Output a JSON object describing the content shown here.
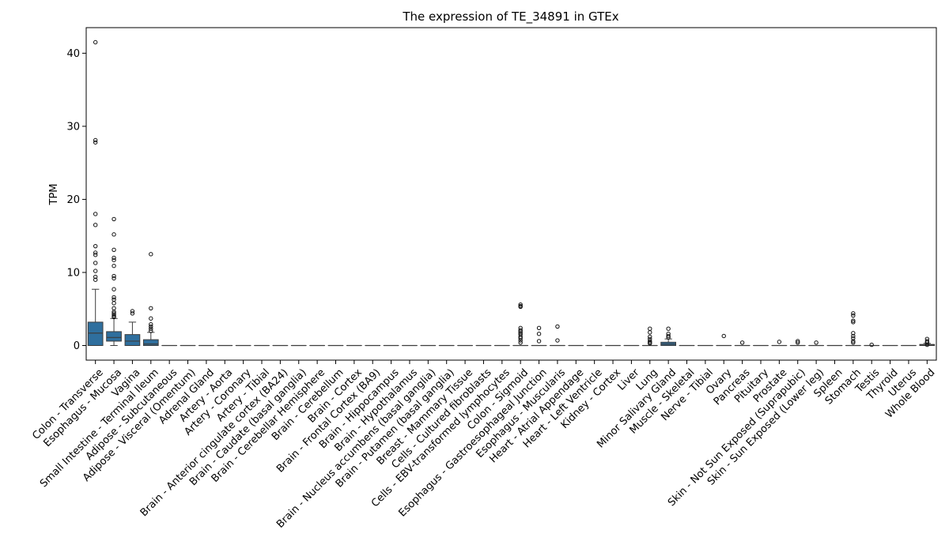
{
  "chart_data": {
    "type": "box",
    "title": "The expression of TE_34891 in GTEx",
    "xlabel": "",
    "ylabel": "TPM",
    "ylim": [
      -2,
      43.5
    ],
    "yticks": [
      0,
      10,
      20,
      30,
      40
    ],
    "grid": false,
    "legend": "none",
    "box_color": "#2f6f9e",
    "categories": [
      "Colon - Transverse",
      "Esophagus - Mucosa",
      "Vagina",
      "Small Intestine - Terminal Ileum",
      "Adipose - Subcutaneous",
      "Adipose - Visceral (Omentum)",
      "Adrenal Gland",
      "Artery - Aorta",
      "Artery - Coronary",
      "Artery - Tibial",
      "Brain - Anterior cingulate cortex (BA24)",
      "Brain - Caudate (basal ganglia)",
      "Brain - Cerebellar Hemisphere",
      "Brain - Cerebellum",
      "Brain - Cortex",
      "Brain - Frontal Cortex (BA9)",
      "Brain - Hippocampus",
      "Brain - Hypothalamus",
      "Brain - Nucleus accumbens (basal ganglia)",
      "Brain - Putamen (basal ganglia)",
      "Breast - Mammary Tissue",
      "Cells - Cultured fibroblasts",
      "Cells - EBV-transformed lymphocytes",
      "Colon - Sigmoid",
      "Esophagus - Gastroesophageal Junction",
      "Esophagus - Muscularis",
      "Heart - Atrial Appendage",
      "Heart - Left Ventricle",
      "Kidney - Cortex",
      "Liver",
      "Lung",
      "Minor Salivary Gland",
      "Muscle - Skeletal",
      "Nerve - Tibial",
      "Ovary",
      "Pancreas",
      "Pituitary",
      "Prostate",
      "Skin - Not Sun Exposed (Suprapubic)",
      "Skin - Sun Exposed (Lower leg)",
      "Spleen",
      "Stomach",
      "Testis",
      "Thyroid",
      "Uterus",
      "Whole Blood"
    ],
    "boxes": [
      {
        "q1": 0.0,
        "median": 1.7,
        "q3": 3.2,
        "whisker_low": 0.0,
        "whisker_high": 7.7,
        "outliers": [
          41.5,
          28.1,
          27.8,
          18.0,
          16.5,
          13.6,
          12.7,
          12.4,
          11.3,
          10.2,
          9.4,
          9.0
        ]
      },
      {
        "q1": 0.6,
        "median": 1.1,
        "q3": 1.9,
        "whisker_low": 0.0,
        "whisker_high": 3.7,
        "outliers": [
          17.3,
          15.2,
          13.1,
          12.0,
          11.7,
          10.9,
          9.5,
          9.2,
          7.7,
          6.6,
          6.3,
          5.8,
          5.1,
          4.6,
          4.4,
          4.2,
          4.0,
          3.9
        ]
      },
      {
        "q1": 0.0,
        "median": 0.6,
        "q3": 1.5,
        "whisker_low": 0.0,
        "whisker_high": 3.2,
        "outliers": [
          4.7,
          4.4
        ]
      },
      {
        "q1": 0.0,
        "median": 0.2,
        "q3": 0.8,
        "whisker_low": 0.0,
        "whisker_high": 1.8,
        "outliers": [
          12.5,
          5.1,
          3.7,
          2.9,
          2.6,
          2.3,
          2.0
        ]
      },
      {
        "q1": 0,
        "median": 0,
        "q3": 0,
        "whisker_low": 0,
        "whisker_high": 0,
        "outliers": []
      },
      {
        "q1": 0,
        "median": 0,
        "q3": 0,
        "whisker_low": 0,
        "whisker_high": 0,
        "outliers": []
      },
      {
        "q1": 0,
        "median": 0,
        "q3": 0,
        "whisker_low": 0,
        "whisker_high": 0,
        "outliers": []
      },
      {
        "q1": 0,
        "median": 0,
        "q3": 0,
        "whisker_low": 0,
        "whisker_high": 0,
        "outliers": []
      },
      {
        "q1": 0,
        "median": 0,
        "q3": 0,
        "whisker_low": 0,
        "whisker_high": 0,
        "outliers": []
      },
      {
        "q1": 0,
        "median": 0,
        "q3": 0,
        "whisker_low": 0,
        "whisker_high": 0,
        "outliers": []
      },
      {
        "q1": 0,
        "median": 0,
        "q3": 0,
        "whisker_low": 0,
        "whisker_high": 0,
        "outliers": []
      },
      {
        "q1": 0,
        "median": 0,
        "q3": 0,
        "whisker_low": 0,
        "whisker_high": 0,
        "outliers": []
      },
      {
        "q1": 0,
        "median": 0,
        "q3": 0,
        "whisker_low": 0,
        "whisker_high": 0,
        "outliers": []
      },
      {
        "q1": 0,
        "median": 0,
        "q3": 0,
        "whisker_low": 0,
        "whisker_high": 0,
        "outliers": []
      },
      {
        "q1": 0,
        "median": 0,
        "q3": 0,
        "whisker_low": 0,
        "whisker_high": 0,
        "outliers": []
      },
      {
        "q1": 0,
        "median": 0,
        "q3": 0,
        "whisker_low": 0,
        "whisker_high": 0,
        "outliers": []
      },
      {
        "q1": 0,
        "median": 0,
        "q3": 0,
        "whisker_low": 0,
        "whisker_high": 0,
        "outliers": []
      },
      {
        "q1": 0,
        "median": 0,
        "q3": 0,
        "whisker_low": 0,
        "whisker_high": 0,
        "outliers": []
      },
      {
        "q1": 0,
        "median": 0,
        "q3": 0,
        "whisker_low": 0,
        "whisker_high": 0,
        "outliers": []
      },
      {
        "q1": 0,
        "median": 0,
        "q3": 0,
        "whisker_low": 0,
        "whisker_high": 0,
        "outliers": []
      },
      {
        "q1": 0,
        "median": 0,
        "q3": 0,
        "whisker_low": 0,
        "whisker_high": 0,
        "outliers": []
      },
      {
        "q1": 0,
        "median": 0,
        "q3": 0,
        "whisker_low": 0,
        "whisker_high": 0,
        "outliers": []
      },
      {
        "q1": 0,
        "median": 0,
        "q3": 0,
        "whisker_low": 0,
        "whisker_high": 0,
        "outliers": []
      },
      {
        "q1": 0,
        "median": 0,
        "q3": 0,
        "whisker_low": 0,
        "whisker_high": 0,
        "outliers": [
          5.6,
          5.4,
          5.3,
          2.4,
          2.1,
          1.9,
          1.7,
          1.5,
          1.2,
          1.0,
          0.7,
          0.4
        ]
      },
      {
        "q1": 0,
        "median": 0,
        "q3": 0,
        "whisker_low": 0,
        "whisker_high": 0,
        "outliers": [
          2.4,
          1.6,
          0.6
        ]
      },
      {
        "q1": 0,
        "median": 0,
        "q3": 0,
        "whisker_low": 0,
        "whisker_high": 0,
        "outliers": [
          2.6,
          0.7
        ]
      },
      {
        "q1": 0,
        "median": 0,
        "q3": 0,
        "whisker_low": 0,
        "whisker_high": 0,
        "outliers": []
      },
      {
        "q1": 0,
        "median": 0,
        "q3": 0,
        "whisker_low": 0,
        "whisker_high": 0,
        "outliers": []
      },
      {
        "q1": 0,
        "median": 0,
        "q3": 0,
        "whisker_low": 0,
        "whisker_high": 0,
        "outliers": []
      },
      {
        "q1": 0,
        "median": 0,
        "q3": 0,
        "whisker_low": 0,
        "whisker_high": 0,
        "outliers": []
      },
      {
        "q1": 0,
        "median": 0,
        "q3": 0,
        "whisker_low": 0,
        "whisker_high": 0,
        "outliers": [
          2.3,
          1.8,
          1.2,
          0.9,
          0.6,
          0.4,
          0.3
        ]
      },
      {
        "q1": 0.0,
        "median": 0.2,
        "q3": 0.45,
        "whisker_low": 0.0,
        "whisker_high": 0.9,
        "outliers": [
          2.3,
          1.6,
          1.3,
          1.1
        ]
      },
      {
        "q1": 0,
        "median": 0,
        "q3": 0,
        "whisker_low": 0,
        "whisker_high": 0,
        "outliers": []
      },
      {
        "q1": 0,
        "median": 0,
        "q3": 0,
        "whisker_low": 0,
        "whisker_high": 0,
        "outliers": []
      },
      {
        "q1": 0,
        "median": 0,
        "q3": 0,
        "whisker_low": 0,
        "whisker_high": 0,
        "outliers": [
          1.3
        ]
      },
      {
        "q1": 0,
        "median": 0,
        "q3": 0,
        "whisker_low": 0,
        "whisker_high": 0,
        "outliers": [
          0.4
        ]
      },
      {
        "q1": 0,
        "median": 0,
        "q3": 0,
        "whisker_low": 0,
        "whisker_high": 0,
        "outliers": []
      },
      {
        "q1": 0,
        "median": 0,
        "q3": 0,
        "whisker_low": 0,
        "whisker_high": 0,
        "outliers": [
          0.5
        ]
      },
      {
        "q1": 0,
        "median": 0,
        "q3": 0,
        "whisker_low": 0,
        "whisker_high": 0,
        "outliers": [
          0.6,
          0.4
        ]
      },
      {
        "q1": 0,
        "median": 0,
        "q3": 0,
        "whisker_low": 0,
        "whisker_high": 0,
        "outliers": [
          0.4
        ]
      },
      {
        "q1": 0,
        "median": 0,
        "q3": 0,
        "whisker_low": 0,
        "whisker_high": 0,
        "outliers": []
      },
      {
        "q1": 0,
        "median": 0,
        "q3": 0,
        "whisker_low": 0,
        "whisker_high": 0,
        "outliers": [
          4.4,
          4.1,
          3.4,
          3.2,
          1.7,
          1.3,
          1.0,
          0.6,
          0.4
        ]
      },
      {
        "q1": 0,
        "median": 0,
        "q3": 0,
        "whisker_low": 0,
        "whisker_high": 0,
        "outliers": [
          0.1
        ]
      },
      {
        "q1": 0,
        "median": 0,
        "q3": 0,
        "whisker_low": 0,
        "whisker_high": 0,
        "outliers": []
      },
      {
        "q1": 0,
        "median": 0,
        "q3": 0,
        "whisker_low": 0,
        "whisker_high": 0,
        "outliers": []
      },
      {
        "q1": 0.0,
        "median": 0.05,
        "q3": 0.15,
        "whisker_low": 0.0,
        "whisker_high": 0.3,
        "outliers": [
          0.9,
          0.6,
          0.4,
          0.1
        ]
      }
    ]
  }
}
